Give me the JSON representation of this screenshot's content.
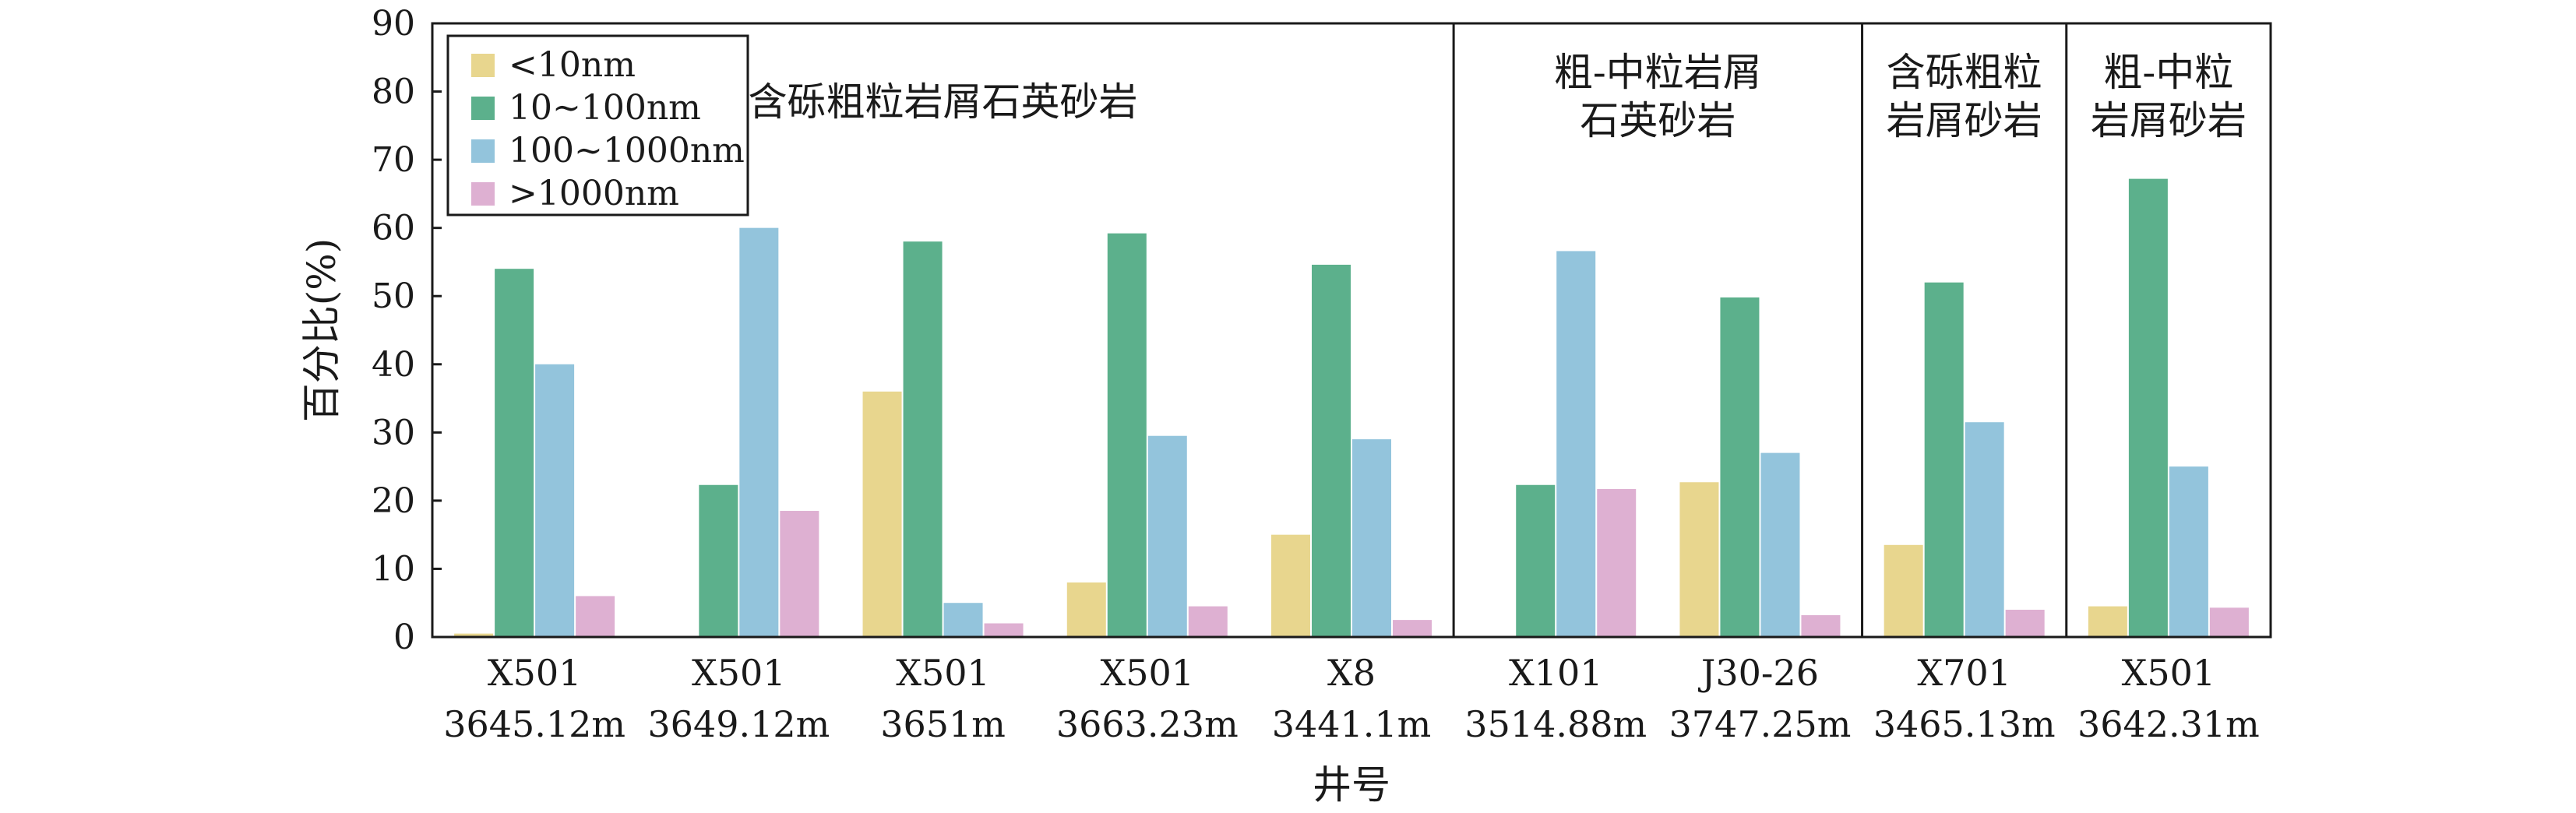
{
  "chart_data": {
    "type": "bar",
    "ylabel": "百分比(%)",
    "xlabel": "井号",
    "ylim": [
      0,
      90
    ],
    "yticks": [
      0,
      10,
      20,
      30,
      40,
      50,
      60,
      70,
      80,
      90
    ],
    "grid": false,
    "legend_position": "top-left",
    "categories": [
      {
        "well": "X501",
        "depth": "3645.12m"
      },
      {
        "well": "X501",
        "depth": "3649.12m"
      },
      {
        "well": "X501",
        "depth": "3651m"
      },
      {
        "well": "X501",
        "depth": "3663.23m"
      },
      {
        "well": "X8",
        "depth": "3441.1m"
      },
      {
        "well": "X101",
        "depth": "3514.88m"
      },
      {
        "well": "J30-26",
        "depth": "3747.25m"
      },
      {
        "well": "X701",
        "depth": "3465.13m"
      },
      {
        "well": "X501",
        "depth": "3642.31m"
      }
    ],
    "series": [
      {
        "name": "<10nm",
        "color": "#e8d68e",
        "values": [
          0.5,
          0,
          36,
          8,
          15,
          0,
          22.7,
          13.5,
          4.5
        ]
      },
      {
        "name": "10~100nm",
        "color": "#5cb08c",
        "values": [
          54,
          22.3,
          58,
          59.2,
          54.6,
          22.3,
          49.8,
          52,
          67.2
        ]
      },
      {
        "name": "100~1000nm",
        "color": "#93c4dc",
        "values": [
          40,
          60,
          5,
          29.5,
          29,
          56.6,
          27,
          31.5,
          25
        ]
      },
      {
        "name": ">1000nm",
        "color": "#deb0d2",
        "values": [
          6,
          18.5,
          2,
          4.5,
          2.5,
          21.7,
          3.2,
          4,
          4.3
        ]
      }
    ],
    "groups": [
      {
        "lines": [
          "含砾粗粒岩屑石英砂岩"
        ],
        "start": 0,
        "end": 4
      },
      {
        "lines": [
          "粗-中粒岩屑",
          "石英砂岩"
        ],
        "start": 5,
        "end": 6
      },
      {
        "lines": [
          "含砾粗粒",
          "岩屑砂岩"
        ],
        "start": 7,
        "end": 7
      },
      {
        "lines": [
          "粗-中粒",
          "岩屑砂岩"
        ],
        "start": 8,
        "end": 8
      }
    ]
  }
}
